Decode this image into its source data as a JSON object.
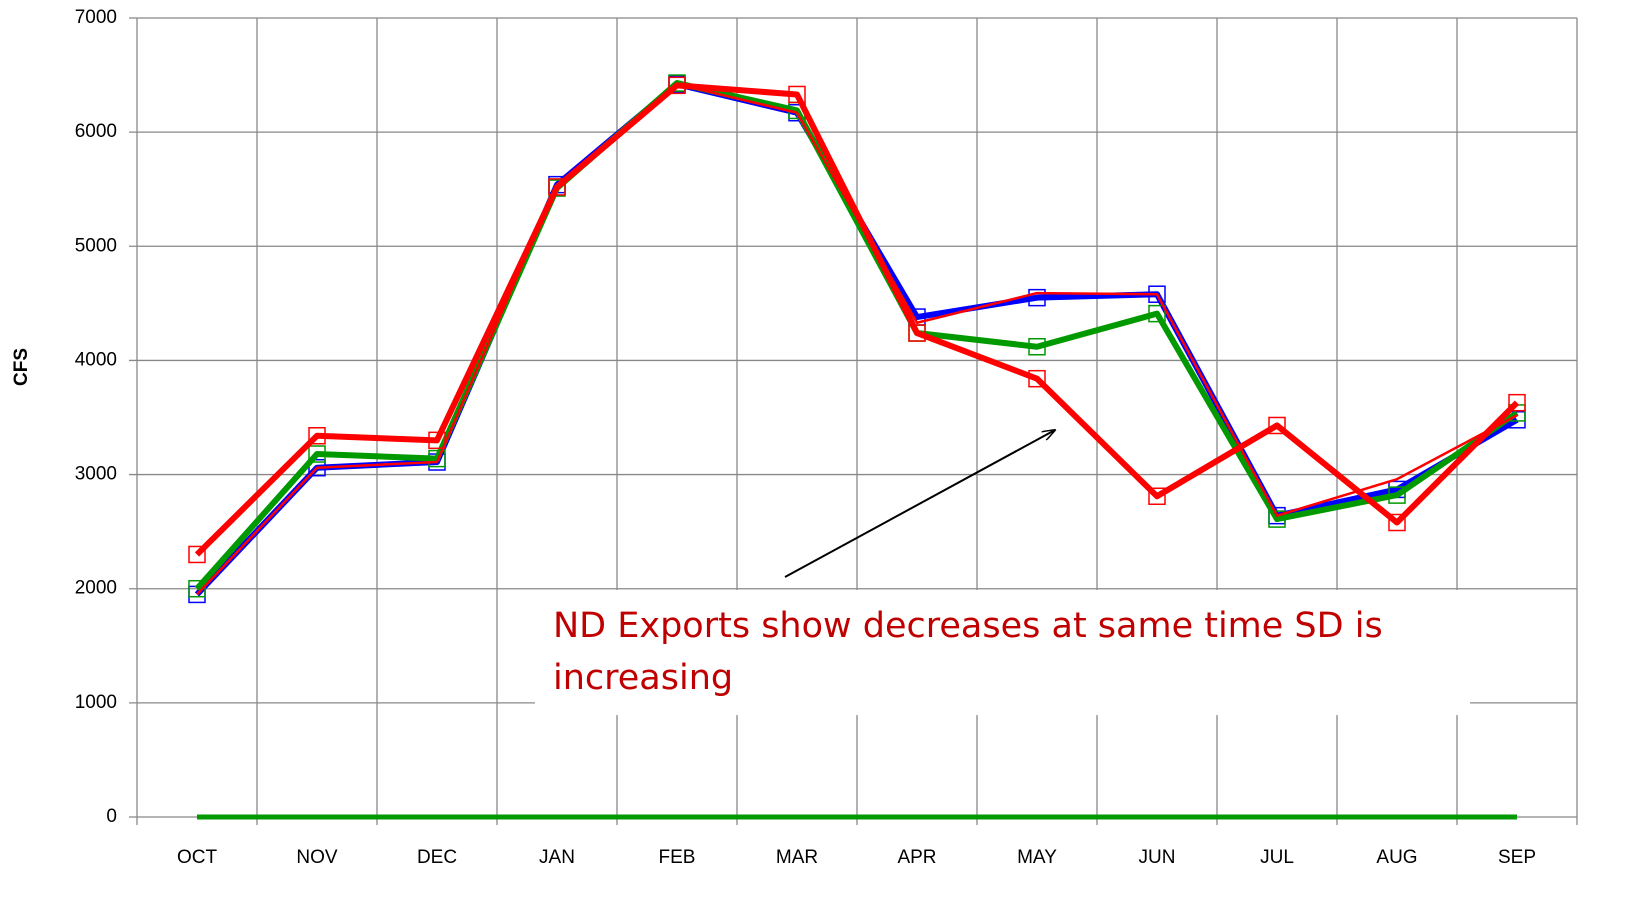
{
  "chart_data": {
    "type": "line",
    "y_label": "CFS",
    "annotation": "ND Exports show decreases at same time SD is increasing",
    "categories": [
      "OCT",
      "NOV",
      "DEC",
      "JAN",
      "FEB",
      "MAR",
      "APR",
      "MAY",
      "JUN",
      "JUL",
      "AUG",
      "SEP"
    ],
    "series": [
      {
        "color": "#0000ff",
        "values": [
          1950,
          3060,
          3110,
          5540,
          6420,
          6170,
          4380,
          4550,
          4580,
          2640,
          2870,
          3480
        ]
      },
      {
        "color": "#009900",
        "values": [
          2000,
          3180,
          3140,
          5510,
          6430,
          6190,
          4240,
          4120,
          4410,
          2610,
          2820,
          3540
        ]
      },
      {
        "color": "#ff0000",
        "values": [
          1950,
          3060,
          3110,
          5540,
          6420,
          6170,
          4330,
          4590,
          4580,
          2640,
          2960,
          3520
        ]
      },
      {
        "color": "#ff0000",
        "values": [
          2300,
          3340,
          3300,
          5520,
          6410,
          6330,
          4240,
          3840,
          2810,
          3430,
          2580,
          3630
        ]
      },
      {
        "color": "#009900",
        "values": [
          0,
          0,
          0,
          0,
          0,
          0,
          0,
          0,
          0,
          0,
          0,
          0
        ]
      }
    ],
    "ylim": [
      0,
      7000
    ],
    "yticks": [
      0,
      1000,
      2000,
      3000,
      4000,
      5000,
      6000,
      7000
    ],
    "grid": true
  }
}
